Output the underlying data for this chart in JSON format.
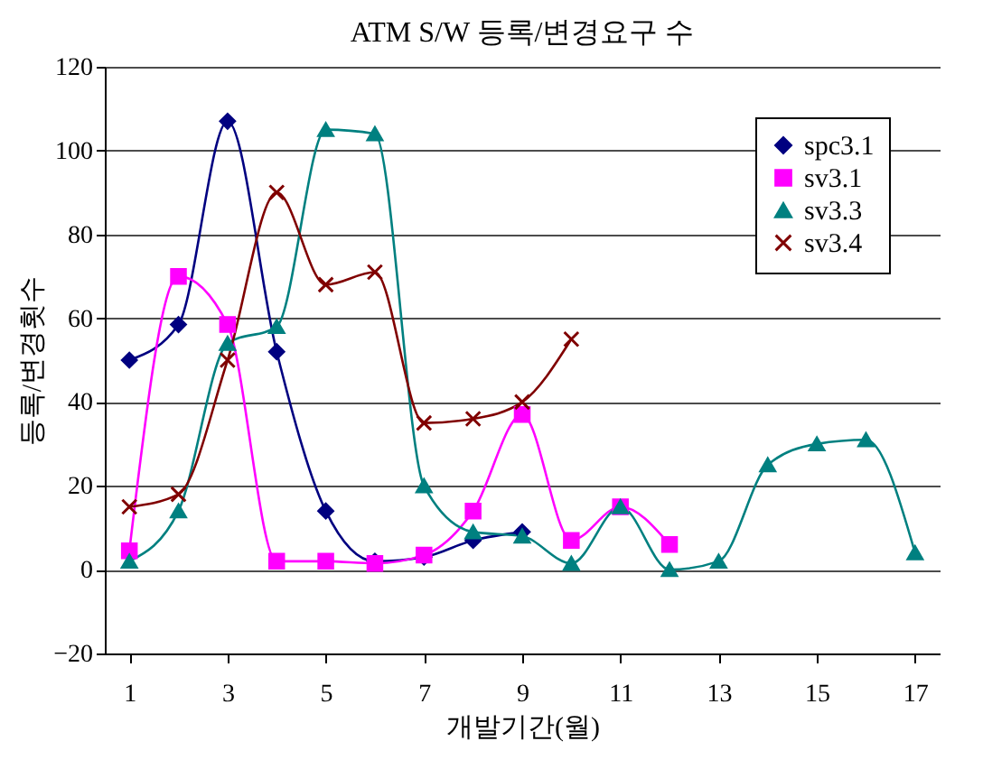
{
  "chart_data": {
    "type": "line",
    "title": "ATM S/W 등록/변경요구 수",
    "xlabel": "개발기간(월)",
    "ylabel": "등록/변경횟수",
    "xlim": [
      0.5,
      17.5
    ],
    "xticks": [
      1,
      3,
      5,
      7,
      9,
      11,
      13,
      15,
      17
    ],
    "ylim": [
      -20,
      120
    ],
    "yticks": [
      -20,
      0,
      20,
      40,
      60,
      80,
      100,
      120
    ],
    "grid": "y",
    "legend": "top right",
    "series": [
      {
        "name": "spc3.1",
        "color": "#000080",
        "marker": "diamond",
        "x": [
          1,
          2,
          3,
          4,
          5,
          6,
          7,
          8,
          9
        ],
        "values": [
          50,
          58.5,
          107,
          52,
          14,
          2,
          3,
          7,
          9
        ]
      },
      {
        "name": "sv3.1",
        "color": "#ff00ff",
        "marker": "square",
        "x": [
          1,
          2,
          3,
          4,
          5,
          6,
          7,
          8,
          9,
          10,
          11,
          12
        ],
        "values": [
          4.5,
          70,
          58.5,
          2,
          2,
          1.5,
          3.5,
          14,
          37,
          7,
          15,
          6
        ]
      },
      {
        "name": "sv3.3",
        "color": "#008080",
        "marker": "triangle",
        "x": [
          1,
          2,
          3,
          4,
          5,
          6,
          7,
          8,
          9,
          10,
          11,
          12,
          13,
          14,
          15,
          16,
          17
        ],
        "values": [
          2,
          14,
          54,
          58,
          105,
          104,
          20,
          9,
          8,
          1.5,
          15,
          0,
          2,
          25,
          30,
          31,
          4
        ]
      },
      {
        "name": "sv3.4",
        "color": "#800000",
        "marker": "cross",
        "x": [
          1,
          2,
          3,
          4,
          5,
          6,
          7,
          8,
          9,
          10
        ],
        "values": [
          15,
          18,
          50,
          90,
          68,
          71,
          35,
          36,
          40,
          55
        ]
      }
    ]
  }
}
